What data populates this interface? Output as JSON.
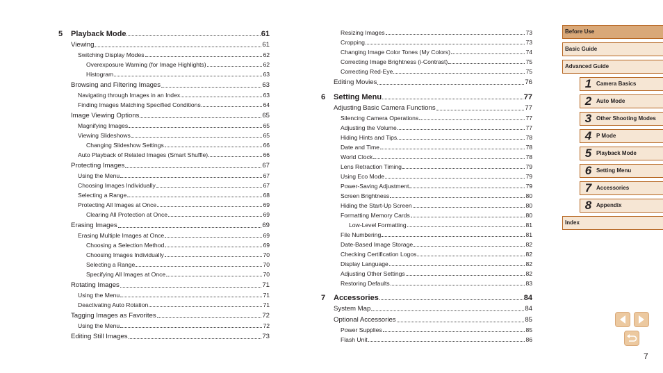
{
  "toc_left": [
    {
      "lv": 0,
      "num": "5",
      "t": "Playback Mode",
      "p": "61"
    },
    {
      "lv": 1,
      "t": "Viewing",
      "p": "61"
    },
    {
      "lv": 2,
      "t": "Switching Display Modes",
      "p": "62"
    },
    {
      "lv": 3,
      "t": "Overexposure Warning (for Image Highlights)",
      "p": "62"
    },
    {
      "lv": 3,
      "t": "Histogram",
      "p": "63"
    },
    {
      "lv": 1,
      "t": "Browsing and Filtering Images",
      "p": "63"
    },
    {
      "lv": 2,
      "t": "Navigating through Images in an Index",
      "p": "63"
    },
    {
      "lv": 2,
      "t": "Finding Images Matching Specified Conditions",
      "p": "64"
    },
    {
      "lv": 1,
      "t": "Image Viewing Options",
      "p": "65"
    },
    {
      "lv": 2,
      "t": "Magnifying Images",
      "p": "65"
    },
    {
      "lv": 2,
      "t": "Viewing Slideshows",
      "p": "65"
    },
    {
      "lv": 3,
      "t": "Changing Slideshow Settings",
      "p": "66"
    },
    {
      "lv": 2,
      "t": "Auto Playback of Related Images (Smart Shuffle)",
      "p": "66"
    },
    {
      "lv": 1,
      "t": "Protecting Images",
      "p": "67"
    },
    {
      "lv": 2,
      "t": "Using the Menu",
      "p": "67"
    },
    {
      "lv": 2,
      "t": "Choosing Images Individually",
      "p": "67"
    },
    {
      "lv": 2,
      "t": "Selecting a Range",
      "p": "68"
    },
    {
      "lv": 2,
      "t": "Protecting All Images at Once",
      "p": "69"
    },
    {
      "lv": 3,
      "t": "Clearing All Protection at Once",
      "p": "69"
    },
    {
      "lv": 1,
      "t": "Erasing Images",
      "p": "69"
    },
    {
      "lv": 2,
      "t": "Erasing Multiple Images at Once",
      "p": "69"
    },
    {
      "lv": 3,
      "t": "Choosing a Selection Method",
      "p": "69"
    },
    {
      "lv": 3,
      "t": "Choosing Images Individually",
      "p": "70"
    },
    {
      "lv": 3,
      "t": "Selecting a Range",
      "p": "70"
    },
    {
      "lv": 3,
      "t": "Specifying All Images at Once",
      "p": "70"
    },
    {
      "lv": 1,
      "t": "Rotating Images",
      "p": "71"
    },
    {
      "lv": 2,
      "t": "Using the Menu",
      "p": "71"
    },
    {
      "lv": 2,
      "t": "Deactivating Auto Rotation",
      "p": "71"
    },
    {
      "lv": 1,
      "t": "Tagging Images as Favorites",
      "p": "72"
    },
    {
      "lv": 2,
      "t": "Using the Menu",
      "p": "72"
    },
    {
      "lv": 1,
      "t": "Editing Still Images",
      "p": "73"
    }
  ],
  "toc_right": [
    {
      "lv": 2,
      "t": "Resizing Images",
      "p": "73"
    },
    {
      "lv": 2,
      "t": "Cropping",
      "p": "73"
    },
    {
      "lv": 2,
      "t": "Changing Image Color Tones (My Colors)",
      "p": "74"
    },
    {
      "lv": 2,
      "t": "Correcting Image Brightness (i-Contrast)",
      "p": "75"
    },
    {
      "lv": 2,
      "t": "Correcting Red-Eye",
      "p": "75"
    },
    {
      "lv": 1,
      "t": "Editing Movies",
      "p": "76"
    },
    {
      "lv": 0,
      "num": "6",
      "t": "Setting Menu",
      "p": "77"
    },
    {
      "lv": 1,
      "t": "Adjusting Basic Camera Functions",
      "p": "77"
    },
    {
      "lv": 2,
      "t": "Silencing Camera Operations",
      "p": "77"
    },
    {
      "lv": 2,
      "t": "Adjusting the Volume",
      "p": "77"
    },
    {
      "lv": 2,
      "t": "Hiding Hints and Tips",
      "p": "78"
    },
    {
      "lv": 2,
      "t": "Date and Time",
      "p": "78"
    },
    {
      "lv": 2,
      "t": "World Clock",
      "p": "78"
    },
    {
      "lv": 2,
      "t": "Lens Retraction Timing",
      "p": "79"
    },
    {
      "lv": 2,
      "t": "Using Eco Mode",
      "p": "79"
    },
    {
      "lv": 2,
      "t": "Power-Saving Adjustment",
      "p": "79"
    },
    {
      "lv": 2,
      "t": "Screen Brightness",
      "p": "80"
    },
    {
      "lv": 2,
      "t": "Hiding the Start-Up Screen",
      "p": "80"
    },
    {
      "lv": 2,
      "t": "Formatting Memory Cards",
      "p": "80"
    },
    {
      "lv": 3,
      "t": "Low-Level Formatting",
      "p": "81"
    },
    {
      "lv": 2,
      "t": "File Numbering",
      "p": "81"
    },
    {
      "lv": 2,
      "t": "Date-Based Image Storage",
      "p": "82"
    },
    {
      "lv": 2,
      "t": "Checking Certification Logos",
      "p": "82"
    },
    {
      "lv": 2,
      "t": "Display Language",
      "p": "82"
    },
    {
      "lv": 2,
      "t": "Adjusting Other Settings",
      "p": "82"
    },
    {
      "lv": 2,
      "t": "Restoring Defaults",
      "p": "83"
    },
    {
      "lv": 0,
      "num": "7",
      "t": "Accessories",
      "p": "84"
    },
    {
      "lv": 1,
      "t": "System Map",
      "p": "84"
    },
    {
      "lv": 1,
      "t": "Optional Accessories",
      "p": "85"
    },
    {
      "lv": 2,
      "t": "Power Supplies",
      "p": "85"
    },
    {
      "lv": 2,
      "t": "Flash Unit",
      "p": "86"
    }
  ],
  "sidebar": [
    {
      "label": "Before Use",
      "selected": true
    },
    {
      "label": "Basic Guide"
    },
    {
      "label": "Advanced Guide"
    },
    {
      "num": "1",
      "label": "Camera Basics"
    },
    {
      "num": "2",
      "label": "Auto Mode"
    },
    {
      "num": "3",
      "label": "Other Shooting Modes"
    },
    {
      "num": "4",
      "label": "P Mode"
    },
    {
      "num": "5",
      "label": "Playback Mode"
    },
    {
      "num": "6",
      "label": "Setting Menu"
    },
    {
      "num": "7",
      "label": "Accessories"
    },
    {
      "num": "8",
      "label": "Appendix"
    },
    {
      "label": "Index"
    }
  ],
  "nav": {
    "prev_icon": "triangle-left-icon",
    "next_icon": "triangle-right-icon",
    "return_icon": "return-arrow-icon"
  },
  "page_number": "7",
  "colors": {
    "tab_border": "#b5641f",
    "tab_fill": "#f6e6d4",
    "tab_selected": "#d9a878",
    "nav_fill": "#ecc9a0"
  }
}
